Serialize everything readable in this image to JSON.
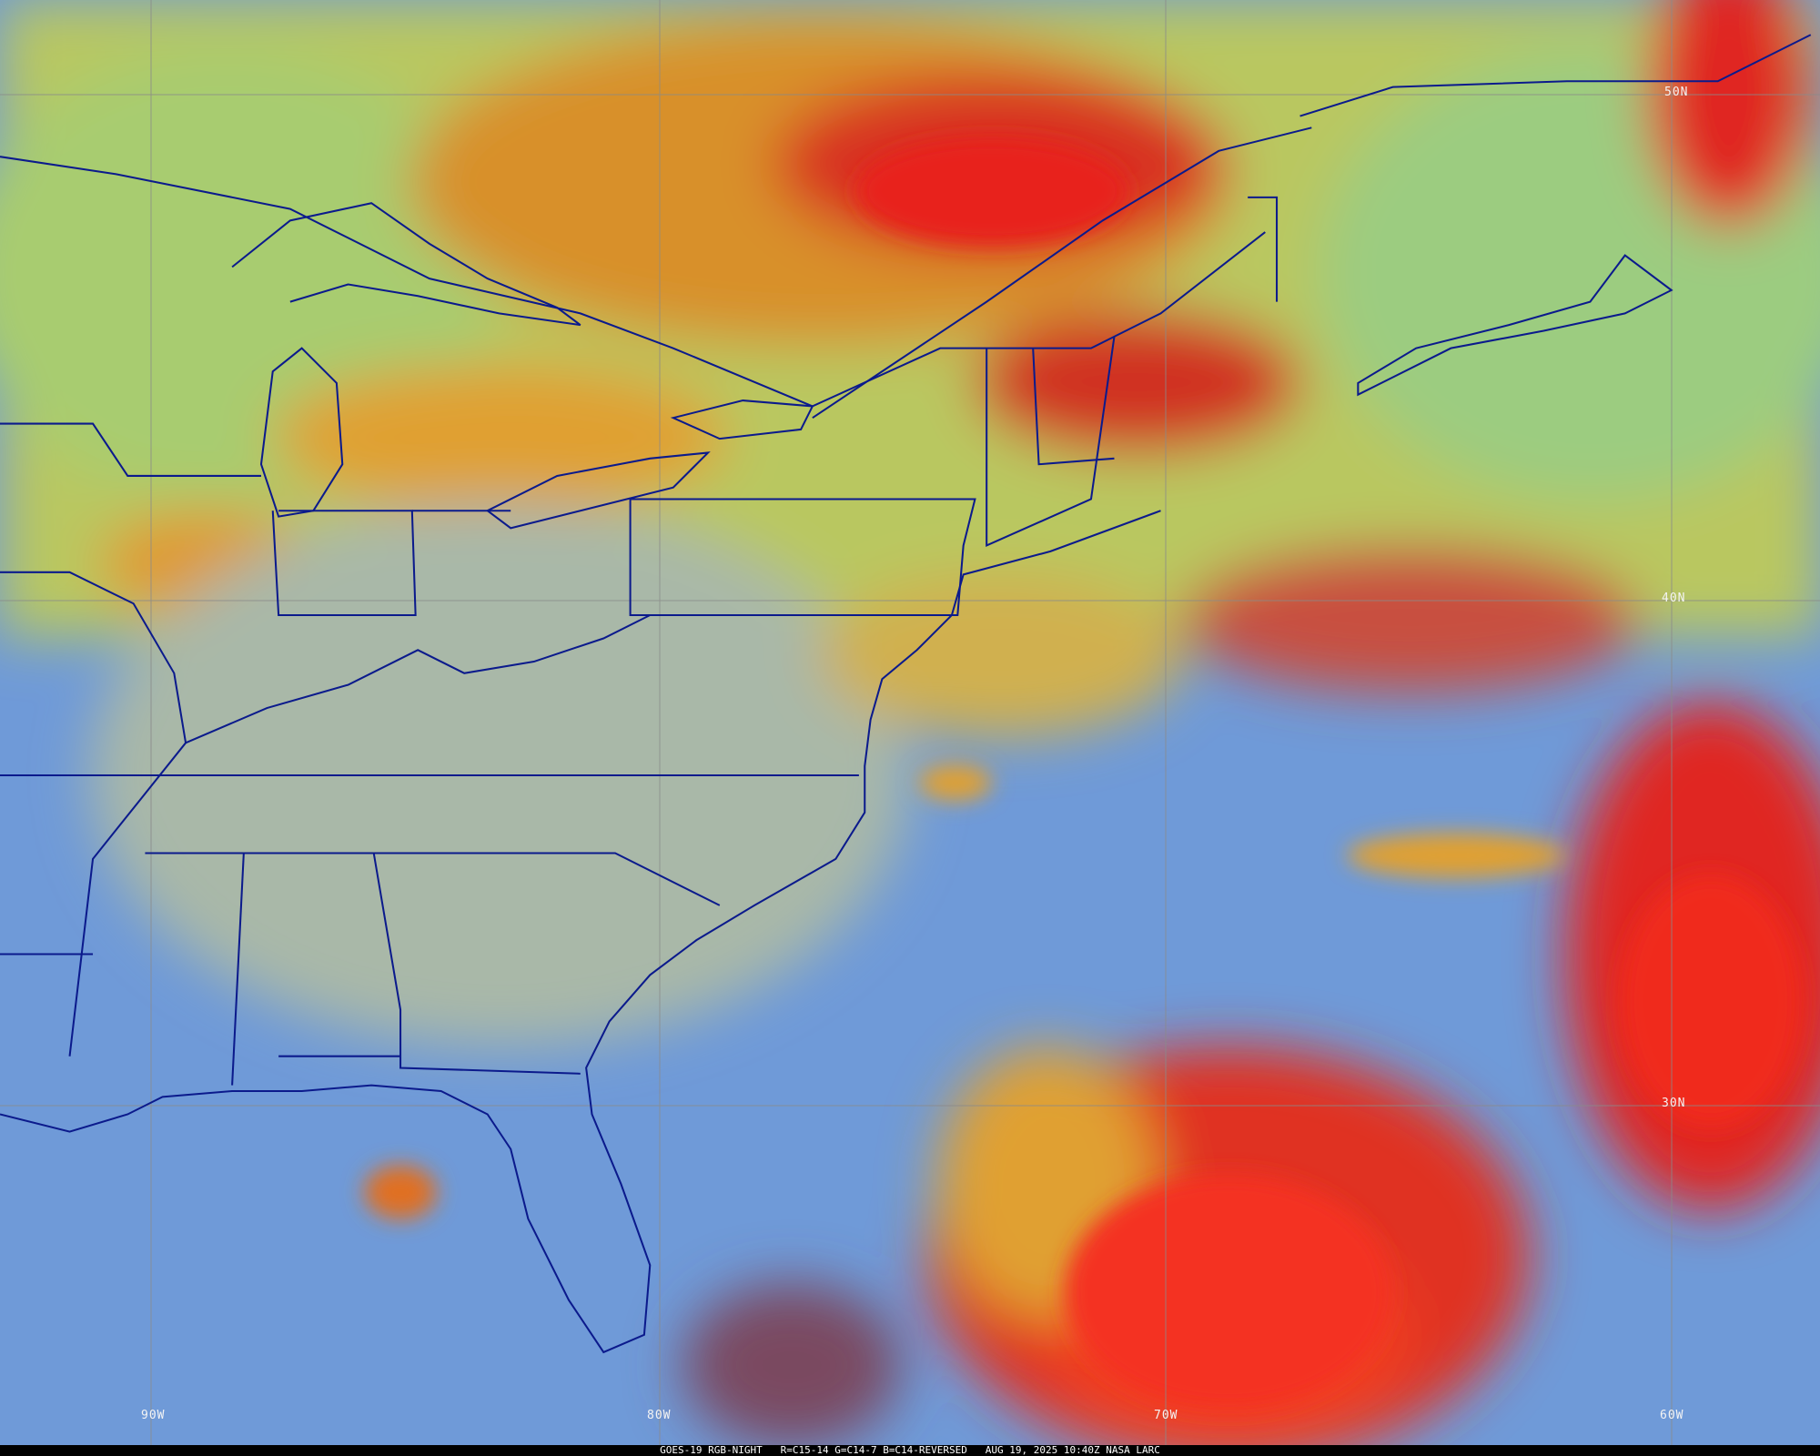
{
  "caption": "GOES-19 RGB-NIGHT   R=C15-14 G=C14-7 B=C14-REVERSED   AUG 19, 2025 10:40Z NASA LARC",
  "latitude_labels": [
    "50N",
    "40N",
    "30N"
  ],
  "longitude_labels": [
    "90W",
    "80W",
    "70W",
    "60W"
  ],
  "colors": {
    "ocean_clear": "#6f9ad8",
    "land_clear": "#9fbf9a",
    "high_cloud": "#e8241c",
    "mid_cloud": "#e8b030",
    "boundaries": "#0b1a8c",
    "gridlines": "#8a8a8a"
  }
}
